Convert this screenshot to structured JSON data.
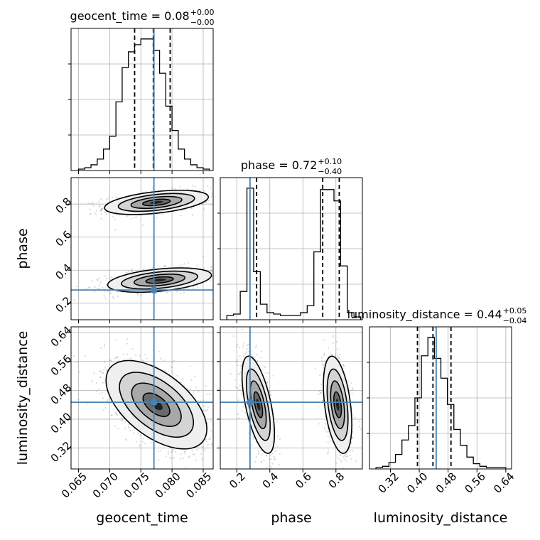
{
  "chart_data": {
    "type": "corner",
    "parameters": [
      {
        "name": "geocent_time",
        "label": "geocent_time",
        "title_main": "geocent_time = 0.08",
        "title_plus": "+0.00",
        "title_minus": "−0.00",
        "range": [
          0.0638,
          0.0866
        ],
        "ticks": [
          0.065,
          0.07,
          0.075,
          0.08,
          0.085
        ],
        "tick_labels": [
          "0.065",
          "0.070",
          "0.075",
          "0.080",
          "0.085"
        ],
        "quantiles": [
          0.074,
          0.077,
          0.0797
        ],
        "truth": 0.0771
      },
      {
        "name": "phase",
        "label": "phase",
        "title_main": "phase = 0.72",
        "title_plus": "+0.10",
        "title_minus": "−0.40",
        "range": [
          0.1,
          0.96
        ],
        "ticks": [
          0.2,
          0.4,
          0.6,
          0.8
        ],
        "tick_labels": [
          "0.2",
          "0.4",
          "0.6",
          "0.8"
        ],
        "quantiles": [
          0.32,
          0.72,
          0.82
        ],
        "truth": 0.28
      },
      {
        "name": "luminosity_distance",
        "label": "luminosity_distance",
        "title_main": "luminosity_distance = 0.44",
        "title_plus": "+0.05",
        "title_minus": "−0.04",
        "range": [
          0.262,
          0.656
        ],
        "ticks": [
          0.32,
          0.4,
          0.48,
          0.56,
          0.64
        ],
        "tick_labels": [
          "0.32",
          "0.40",
          "0.48",
          "0.56",
          "0.64"
        ],
        "quantiles": [
          0.395,
          0.438,
          0.488
        ],
        "truth": 0.447
      }
    ],
    "histograms": [
      {
        "param": "geocent_time",
        "edges_range": [
          0.065,
          0.086
        ],
        "bins": 21,
        "counts": [
          1,
          2,
          4,
          8,
          15,
          24,
          48,
          72,
          83,
          88,
          92,
          92,
          84,
          68,
          45,
          28,
          15,
          8,
          4,
          2,
          1
        ]
      },
      {
        "param": "phase",
        "edges_range": [
          0.14,
          0.95
        ],
        "bins": 20,
        "counts": [
          3,
          4,
          20,
          93,
          34,
          11,
          5,
          4,
          3,
          3,
          3,
          5,
          10,
          48,
          92,
          92,
          84,
          38,
          5,
          2
        ]
      },
      {
        "param": "luminosity_distance",
        "edges_range": [
          0.28,
          0.64
        ],
        "bins": 20,
        "counts": [
          1,
          2,
          5,
          11,
          22,
          33,
          54,
          86,
          100,
          84,
          69,
          49,
          30,
          18,
          9,
          4,
          2,
          1,
          1,
          1
        ]
      }
    ],
    "pairs": [
      {
        "x": "geocent_time",
        "y": "phase",
        "modes": [
          {
            "cx": 0.0775,
            "cy": 0.81,
            "sx": 0.0034,
            "sy": 0.03,
            "rho": 0.45,
            "w": 0.5
          },
          {
            "cx": 0.078,
            "cy": 0.34,
            "sx": 0.0034,
            "sy": 0.03,
            "rho": 0.4,
            "w": 0.5
          }
        ]
      },
      {
        "x": "geocent_time",
        "y": "luminosity_distance",
        "modes": [
          {
            "cx": 0.0775,
            "cy": 0.44,
            "sx": 0.0033,
            "sy": 0.05,
            "rho": -0.55,
            "w": 1.0
          }
        ]
      },
      {
        "x": "phase",
        "y": "luminosity_distance",
        "modes": [
          {
            "cx": 0.33,
            "cy": 0.44,
            "sx": 0.04,
            "sy": 0.055,
            "rho": -0.6,
            "w": 0.5
          },
          {
            "cx": 0.81,
            "cy": 0.44,
            "sx": 0.035,
            "sy": 0.055,
            "rho": -0.4,
            "w": 0.5
          }
        ]
      }
    ],
    "truth_color": "#4682b4",
    "grid": true
  }
}
